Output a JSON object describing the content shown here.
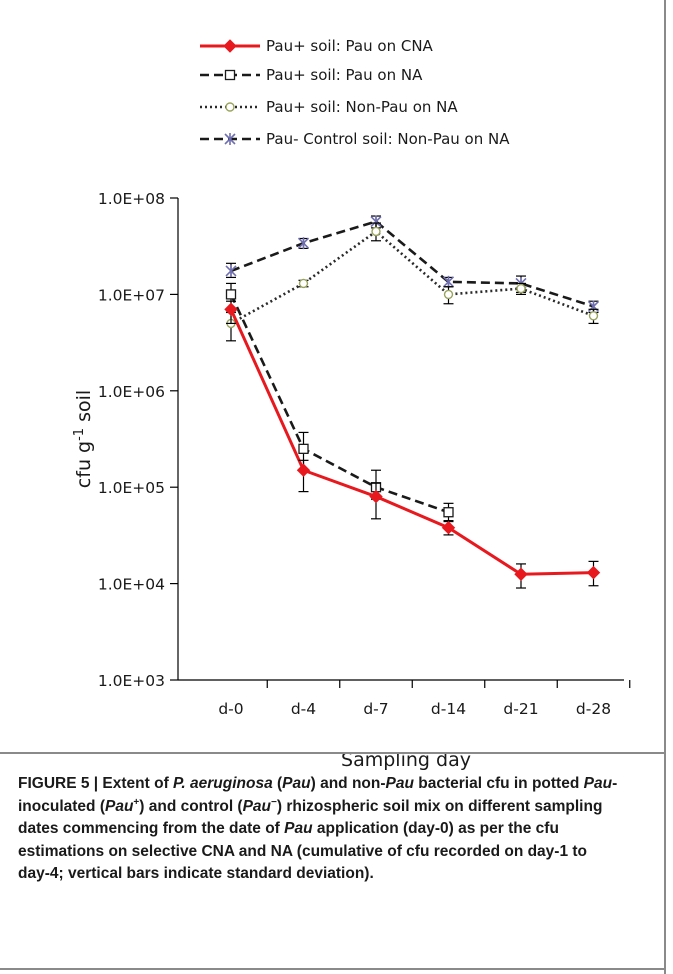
{
  "chart_data": {
    "type": "line",
    "x_categories": [
      "d-0",
      "d-4",
      "d-7",
      "d-14",
      "d-21",
      "d-28"
    ],
    "xlabel": "Sampling day",
    "ylabel_main": "cfu g",
    "ylabel_sup": "-1",
    "ylabel_tail": " soil",
    "y_scale": "log",
    "ylim": [
      1000,
      100000000
    ],
    "y_ticks": [
      1000,
      10000,
      100000,
      1000000,
      10000000,
      100000000
    ],
    "y_tick_labels": [
      "1.0E+03",
      "1.0E+04",
      "1.0E+05",
      "1.0E+06",
      "1.0E+07",
      "1.0E+08"
    ],
    "legend_position": "top",
    "series": [
      {
        "name": "Pau+ soil: Pau on CNA",
        "color": "#e8191e",
        "style": "solid",
        "marker": "diamond",
        "values": [
          7000000,
          150000,
          80000,
          38000,
          12500,
          13000
        ],
        "err_low": [
          5000000,
          90000,
          47000,
          32000,
          9000,
          9500
        ],
        "err_high": [
          8500000,
          190000,
          110000,
          44000,
          16000,
          17000
        ]
      },
      {
        "name": "Pau+ soil: Pau on NA",
        "color": "#1a1a1a",
        "style": "dashed",
        "marker": "square",
        "values": [
          10000000,
          250000,
          100000,
          55000,
          null,
          null
        ],
        "err_low": [
          6500000,
          150000,
          75000,
          45000,
          null,
          null
        ],
        "err_high": [
          13000000,
          370000,
          150000,
          68000,
          null,
          null
        ]
      },
      {
        "name": "Pau+ soil: Non-Pau on NA",
        "color": "#2a2a2a",
        "style": "dotted",
        "marker": "circle",
        "values": [
          5000000,
          13000000,
          45000000,
          10000000,
          11500000,
          6000000
        ],
        "err_low": [
          3300000,
          12000000,
          36000000,
          8000000,
          10000000,
          5000000
        ],
        "err_high": [
          6500000,
          14000000,
          55000000,
          12000000,
          13000000,
          7000000
        ]
      },
      {
        "name": "Pau- Control soil: Non-Pau on NA",
        "color": "#1a1a1a",
        "style": "dashed",
        "marker": "asterisk",
        "values": [
          17500000,
          34000000,
          57000000,
          13500000,
          13000000,
          7500000
        ],
        "err_low": [
          15000000,
          30000000,
          49000000,
          12000000,
          10500000,
          6500000
        ],
        "err_high": [
          21000000,
          38000000,
          65000000,
          15000000,
          15500000,
          8500000
        ]
      }
    ]
  },
  "caption": {
    "p1": "FIGURE 5 | Extent of ",
    "p2": "P. aeruginosa",
    "p3": " (",
    "p4": "Pau",
    "p5": ") and non-",
    "p6": "Pau",
    "p7": " bacterial cfu in potted ",
    "p8": "Pau",
    "p9": "-inoculated (",
    "p10": "Pau",
    "p11": "+",
    "p12": ") and control (",
    "p13": "Pau",
    "p14": "−",
    "p15": ") rhizospheric soil mix on different sampling dates commencing from the date of ",
    "p16": "Pau",
    "p17": " application (day-0) as per the cfu estimations on selective CNA and NA (cumulative of cfu recorded on day-1 to day-4; vertical bars indicate standard deviation)."
  }
}
